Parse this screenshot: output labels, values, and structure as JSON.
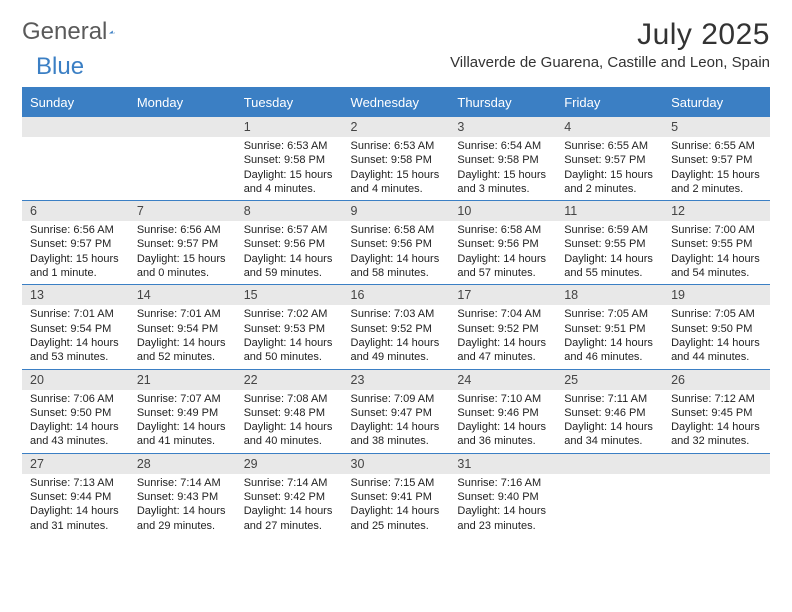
{
  "brand": {
    "part1": "General",
    "part2": "Blue"
  },
  "title": "July 2025",
  "location": "Villaverde de Guarena, Castille and Leon, Spain",
  "days_of_week": [
    "Sunday",
    "Monday",
    "Tuesday",
    "Wednesday",
    "Thursday",
    "Friday",
    "Saturday"
  ],
  "colors": {
    "accent": "#3b7fc4",
    "header_bg": "#3b7fc4",
    "day_header_bg": "#e8e8e8"
  },
  "weeks": [
    [
      {
        "n": "",
        "sunrise": "",
        "sunset": "",
        "daylight": ""
      },
      {
        "n": "",
        "sunrise": "",
        "sunset": "",
        "daylight": ""
      },
      {
        "n": "1",
        "sunrise": "Sunrise: 6:53 AM",
        "sunset": "Sunset: 9:58 PM",
        "daylight": "Daylight: 15 hours and 4 minutes."
      },
      {
        "n": "2",
        "sunrise": "Sunrise: 6:53 AM",
        "sunset": "Sunset: 9:58 PM",
        "daylight": "Daylight: 15 hours and 4 minutes."
      },
      {
        "n": "3",
        "sunrise": "Sunrise: 6:54 AM",
        "sunset": "Sunset: 9:58 PM",
        "daylight": "Daylight: 15 hours and 3 minutes."
      },
      {
        "n": "4",
        "sunrise": "Sunrise: 6:55 AM",
        "sunset": "Sunset: 9:57 PM",
        "daylight": "Daylight: 15 hours and 2 minutes."
      },
      {
        "n": "5",
        "sunrise": "Sunrise: 6:55 AM",
        "sunset": "Sunset: 9:57 PM",
        "daylight": "Daylight: 15 hours and 2 minutes."
      }
    ],
    [
      {
        "n": "6",
        "sunrise": "Sunrise: 6:56 AM",
        "sunset": "Sunset: 9:57 PM",
        "daylight": "Daylight: 15 hours and 1 minute."
      },
      {
        "n": "7",
        "sunrise": "Sunrise: 6:56 AM",
        "sunset": "Sunset: 9:57 PM",
        "daylight": "Daylight: 15 hours and 0 minutes."
      },
      {
        "n": "8",
        "sunrise": "Sunrise: 6:57 AM",
        "sunset": "Sunset: 9:56 PM",
        "daylight": "Daylight: 14 hours and 59 minutes."
      },
      {
        "n": "9",
        "sunrise": "Sunrise: 6:58 AM",
        "sunset": "Sunset: 9:56 PM",
        "daylight": "Daylight: 14 hours and 58 minutes."
      },
      {
        "n": "10",
        "sunrise": "Sunrise: 6:58 AM",
        "sunset": "Sunset: 9:56 PM",
        "daylight": "Daylight: 14 hours and 57 minutes."
      },
      {
        "n": "11",
        "sunrise": "Sunrise: 6:59 AM",
        "sunset": "Sunset: 9:55 PM",
        "daylight": "Daylight: 14 hours and 55 minutes."
      },
      {
        "n": "12",
        "sunrise": "Sunrise: 7:00 AM",
        "sunset": "Sunset: 9:55 PM",
        "daylight": "Daylight: 14 hours and 54 minutes."
      }
    ],
    [
      {
        "n": "13",
        "sunrise": "Sunrise: 7:01 AM",
        "sunset": "Sunset: 9:54 PM",
        "daylight": "Daylight: 14 hours and 53 minutes."
      },
      {
        "n": "14",
        "sunrise": "Sunrise: 7:01 AM",
        "sunset": "Sunset: 9:54 PM",
        "daylight": "Daylight: 14 hours and 52 minutes."
      },
      {
        "n": "15",
        "sunrise": "Sunrise: 7:02 AM",
        "sunset": "Sunset: 9:53 PM",
        "daylight": "Daylight: 14 hours and 50 minutes."
      },
      {
        "n": "16",
        "sunrise": "Sunrise: 7:03 AM",
        "sunset": "Sunset: 9:52 PM",
        "daylight": "Daylight: 14 hours and 49 minutes."
      },
      {
        "n": "17",
        "sunrise": "Sunrise: 7:04 AM",
        "sunset": "Sunset: 9:52 PM",
        "daylight": "Daylight: 14 hours and 47 minutes."
      },
      {
        "n": "18",
        "sunrise": "Sunrise: 7:05 AM",
        "sunset": "Sunset: 9:51 PM",
        "daylight": "Daylight: 14 hours and 46 minutes."
      },
      {
        "n": "19",
        "sunrise": "Sunrise: 7:05 AM",
        "sunset": "Sunset: 9:50 PM",
        "daylight": "Daylight: 14 hours and 44 minutes."
      }
    ],
    [
      {
        "n": "20",
        "sunrise": "Sunrise: 7:06 AM",
        "sunset": "Sunset: 9:50 PM",
        "daylight": "Daylight: 14 hours and 43 minutes."
      },
      {
        "n": "21",
        "sunrise": "Sunrise: 7:07 AM",
        "sunset": "Sunset: 9:49 PM",
        "daylight": "Daylight: 14 hours and 41 minutes."
      },
      {
        "n": "22",
        "sunrise": "Sunrise: 7:08 AM",
        "sunset": "Sunset: 9:48 PM",
        "daylight": "Daylight: 14 hours and 40 minutes."
      },
      {
        "n": "23",
        "sunrise": "Sunrise: 7:09 AM",
        "sunset": "Sunset: 9:47 PM",
        "daylight": "Daylight: 14 hours and 38 minutes."
      },
      {
        "n": "24",
        "sunrise": "Sunrise: 7:10 AM",
        "sunset": "Sunset: 9:46 PM",
        "daylight": "Daylight: 14 hours and 36 minutes."
      },
      {
        "n": "25",
        "sunrise": "Sunrise: 7:11 AM",
        "sunset": "Sunset: 9:46 PM",
        "daylight": "Daylight: 14 hours and 34 minutes."
      },
      {
        "n": "26",
        "sunrise": "Sunrise: 7:12 AM",
        "sunset": "Sunset: 9:45 PM",
        "daylight": "Daylight: 14 hours and 32 minutes."
      }
    ],
    [
      {
        "n": "27",
        "sunrise": "Sunrise: 7:13 AM",
        "sunset": "Sunset: 9:44 PM",
        "daylight": "Daylight: 14 hours and 31 minutes."
      },
      {
        "n": "28",
        "sunrise": "Sunrise: 7:14 AM",
        "sunset": "Sunset: 9:43 PM",
        "daylight": "Daylight: 14 hours and 29 minutes."
      },
      {
        "n": "29",
        "sunrise": "Sunrise: 7:14 AM",
        "sunset": "Sunset: 9:42 PM",
        "daylight": "Daylight: 14 hours and 27 minutes."
      },
      {
        "n": "30",
        "sunrise": "Sunrise: 7:15 AM",
        "sunset": "Sunset: 9:41 PM",
        "daylight": "Daylight: 14 hours and 25 minutes."
      },
      {
        "n": "31",
        "sunrise": "Sunrise: 7:16 AM",
        "sunset": "Sunset: 9:40 PM",
        "daylight": "Daylight: 14 hours and 23 minutes."
      },
      {
        "n": "",
        "sunrise": "",
        "sunset": "",
        "daylight": ""
      },
      {
        "n": "",
        "sunrise": "",
        "sunset": "",
        "daylight": ""
      }
    ]
  ]
}
